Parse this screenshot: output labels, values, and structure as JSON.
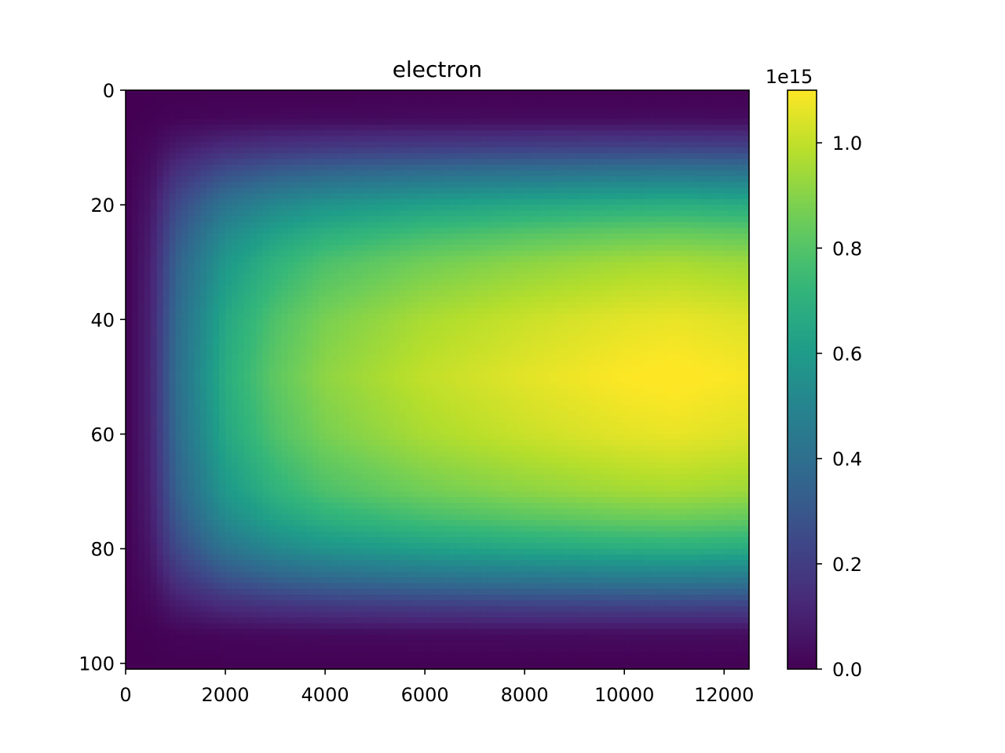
{
  "chart_data": {
    "type": "heatmap",
    "title": "electron",
    "xlabel": "",
    "ylabel": "",
    "x_ticks": [
      "0",
      "2000",
      "4000",
      "6000",
      "8000",
      "10000",
      "12000"
    ],
    "y_ticks": [
      "0",
      "20",
      "40",
      "60",
      "80",
      "100"
    ],
    "x_tick_values": [
      0,
      2000,
      4000,
      6000,
      8000,
      10000,
      12000
    ],
    "y_tick_values": [
      0,
      20,
      40,
      60,
      80,
      100
    ],
    "xlim": [
      0,
      12500
    ],
    "ylim": [
      101,
      0
    ],
    "y_axis_inverted": true,
    "colormap": "viridis",
    "colorbar": {
      "ticks": [
        "0.0",
        "0.2",
        "0.4",
        "0.6",
        "0.8",
        "1.0"
      ],
      "tick_values": [
        0.0,
        0.2,
        0.4,
        0.6,
        0.8,
        1.0
      ],
      "range": [
        0.0,
        1.1
      ],
      "offset_label": "1e15"
    },
    "value_scale": 1000000000000000.0,
    "x_samples": [
      0,
      500,
      1000,
      2000,
      3000,
      4000,
      6000,
      8000,
      10000,
      11000,
      12500
    ],
    "x_profile": [
      0.0,
      0.1,
      0.35,
      0.62,
      0.75,
      0.83,
      0.91,
      0.96,
      1.0,
      1.01,
      0.99
    ],
    "y_samples": [
      0,
      5,
      10,
      15,
      20,
      25,
      30,
      40,
      50,
      60,
      70,
      75,
      80,
      85,
      90,
      95,
      101
    ],
    "y_profile": [
      0.0,
      0.03,
      0.2,
      0.42,
      0.62,
      0.76,
      0.86,
      0.96,
      1.0,
      0.96,
      0.86,
      0.76,
      0.62,
      0.42,
      0.2,
      0.03,
      0.0
    ],
    "peak_value": 1.1
  }
}
